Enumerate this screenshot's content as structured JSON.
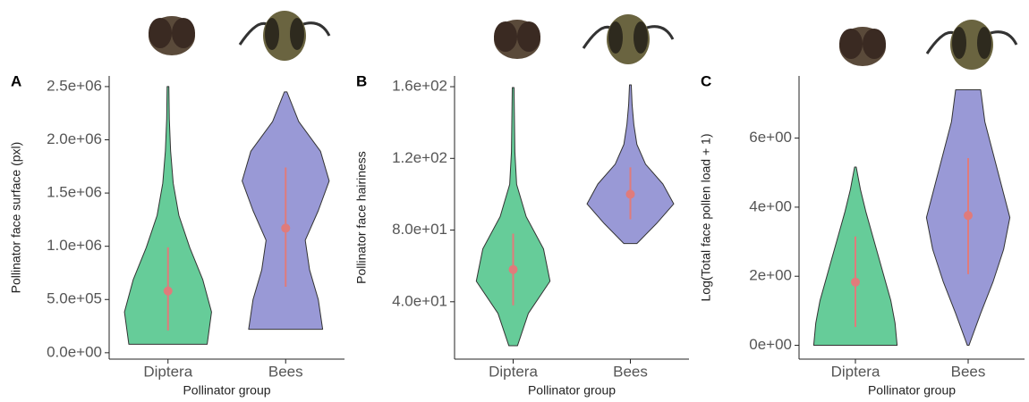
{
  "chart_data": [
    {
      "type": "violin",
      "panel": "A",
      "y_label": "Pollinator face surface (pxl)",
      "x_label": "Pollinator group",
      "categories": [
        "Diptera",
        "Bees"
      ],
      "point_color": "#e07b7b",
      "violins": [
        {
          "color": "#66cc99",
          "min": 80000,
          "max": 2500000,
          "density": [
            0.9,
            1.0,
            0.8,
            0.5,
            0.25,
            0.12,
            0.06,
            0.03,
            0.02
          ],
          "mean": 580000,
          "lower": 210000,
          "upper": 990000
        },
        {
          "color": "#9999d6",
          "min": 220000,
          "max": 2450000,
          "density": [
            0.85,
            0.75,
            0.55,
            0.45,
            0.75,
            1.0,
            0.8,
            0.3,
            0.03
          ],
          "mean": 1170000,
          "lower": 620000,
          "upper": 1740000
        }
      ],
      "ylim": [
        -60000,
        2600000
      ],
      "yticks": [
        {
          "value": 0,
          "label": "0.0e+00"
        },
        {
          "value": 500000,
          "label": "5.0e+05"
        },
        {
          "value": 1000000,
          "label": "1.0e+06"
        },
        {
          "value": 1500000,
          "label": "1.5e+06"
        },
        {
          "value": 2000000,
          "label": "2.0e+06"
        },
        {
          "value": 2500000,
          "label": "2.5e+06"
        }
      ]
    },
    {
      "type": "violin",
      "panel": "B",
      "y_label": "Pollinator face hairiness",
      "x_label": "Pollinator group",
      "categories": [
        "Diptera",
        "Bees"
      ],
      "point_color": "#e07b7b",
      "violins": [
        {
          "color": "#66cc99",
          "min": 15.5,
          "max": 159.5,
          "density": [
            0.1,
            0.35,
            0.85,
            0.7,
            0.3,
            0.08,
            0.04,
            0.03,
            0.02
          ],
          "mean": 58,
          "lower": 38,
          "upper": 78
        },
        {
          "color": "#9999d6",
          "min": 72.5,
          "max": 161,
          "density": [
            0.15,
            0.6,
            1.0,
            0.75,
            0.35,
            0.15,
            0.08,
            0.04,
            0.02
          ],
          "mean": 100,
          "lower": 86,
          "upper": 115
        }
      ],
      "ylim": [
        8,
        166
      ],
      "yticks": [
        {
          "value": 40,
          "label": "4.0e+01"
        },
        {
          "value": 80,
          "label": "8.0e+01"
        },
        {
          "value": 120,
          "label": "1.2e+02"
        },
        {
          "value": 160,
          "label": "1.6e+02"
        }
      ]
    },
    {
      "type": "violin",
      "panel": "C",
      "y_label": "Log(Total face pollen load + 1)",
      "x_label": "Pollinator group",
      "categories": [
        "Diptera",
        "Bees"
      ],
      "point_color": "#e07b7b",
      "violins": [
        {
          "color": "#66cc99",
          "min": 0,
          "max": 5.16,
          "density": [
            1.0,
            0.95,
            0.85,
            0.7,
            0.55,
            0.4,
            0.25,
            0.12,
            0.02
          ],
          "mean": 1.83,
          "lower": 0.53,
          "upper": 3.15
        },
        {
          "color": "#9999d6",
          "min": 0,
          "max": 7.4,
          "density": [
            0.02,
            0.3,
            0.6,
            0.85,
            1.0,
            0.8,
            0.6,
            0.4,
            0.3
          ],
          "mean": 3.76,
          "lower": 2.06,
          "upper": 5.42
        }
      ],
      "ylim": [
        -0.4,
        7.8
      ],
      "yticks": [
        {
          "value": 0,
          "label": "0e+00"
        },
        {
          "value": 2,
          "label": "2e+00"
        },
        {
          "value": 4,
          "label": "4e+00"
        },
        {
          "value": 6,
          "label": "6e+00"
        }
      ]
    }
  ]
}
